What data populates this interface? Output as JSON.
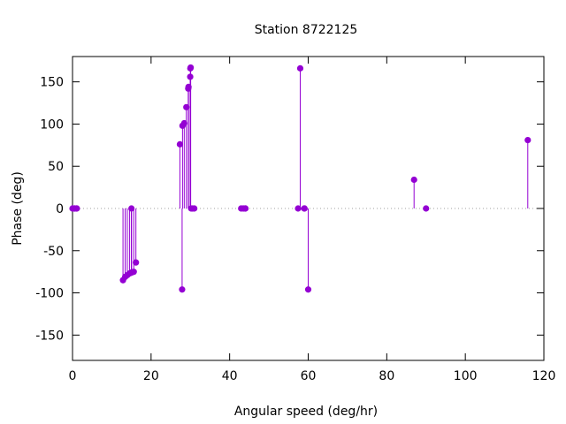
{
  "chart_data": {
    "type": "stem",
    "title": "Station 8722125",
    "xlabel": "Angular speed (deg/hr)",
    "ylabel": "Phase (deg)",
    "xlim": [
      0,
      120
    ],
    "ylim": [
      -180,
      180
    ],
    "xticks": [
      0,
      20,
      40,
      60,
      80,
      100,
      120
    ],
    "yticks": [
      -150,
      -100,
      -50,
      0,
      50,
      100,
      150
    ],
    "zero_line": true,
    "grid": false,
    "color": "#9400d3",
    "points": [
      {
        "x": 0.0,
        "y": 0
      },
      {
        "x": 0.04,
        "y": 0
      },
      {
        "x": 0.08,
        "y": 0
      },
      {
        "x": 0.5,
        "y": 0
      },
      {
        "x": 0.55,
        "y": 0
      },
      {
        "x": 1.02,
        "y": 0
      },
      {
        "x": 1.1,
        "y": 0
      },
      {
        "x": 12.85,
        "y": -85
      },
      {
        "x": 13.4,
        "y": -81
      },
      {
        "x": 13.94,
        "y": -79
      },
      {
        "x": 14.5,
        "y": -77
      },
      {
        "x": 14.96,
        "y": -76
      },
      {
        "x": 15.0,
        "y": 0
      },
      {
        "x": 15.04,
        "y": -76
      },
      {
        "x": 15.59,
        "y": -75
      },
      {
        "x": 16.14,
        "y": -64
      },
      {
        "x": 27.34,
        "y": 76
      },
      {
        "x": 27.9,
        "y": -96
      },
      {
        "x": 28.0,
        "y": 98
      },
      {
        "x": 28.44,
        "y": 101
      },
      {
        "x": 28.98,
        "y": 120
      },
      {
        "x": 29.46,
        "y": 142
      },
      {
        "x": 29.53,
        "y": 144
      },
      {
        "x": 29.96,
        "y": 156
      },
      {
        "x": 30.0,
        "y": 166
      },
      {
        "x": 30.08,
        "y": 167
      },
      {
        "x": 30.2,
        "y": 0
      },
      {
        "x": 30.55,
        "y": 0
      },
      {
        "x": 31.0,
        "y": 0
      },
      {
        "x": 42.93,
        "y": 0
      },
      {
        "x": 43.48,
        "y": 0
      },
      {
        "x": 43.94,
        "y": 0
      },
      {
        "x": 44.03,
        "y": 0
      },
      {
        "x": 57.42,
        "y": 0
      },
      {
        "x": 57.97,
        "y": 166
      },
      {
        "x": 58.98,
        "y": 0
      },
      {
        "x": 59.07,
        "y": 0
      },
      {
        "x": 60.0,
        "y": -96
      },
      {
        "x": 86.95,
        "y": 34
      },
      {
        "x": 90.0,
        "y": 0
      },
      {
        "x": 115.9,
        "y": 81
      }
    ]
  }
}
